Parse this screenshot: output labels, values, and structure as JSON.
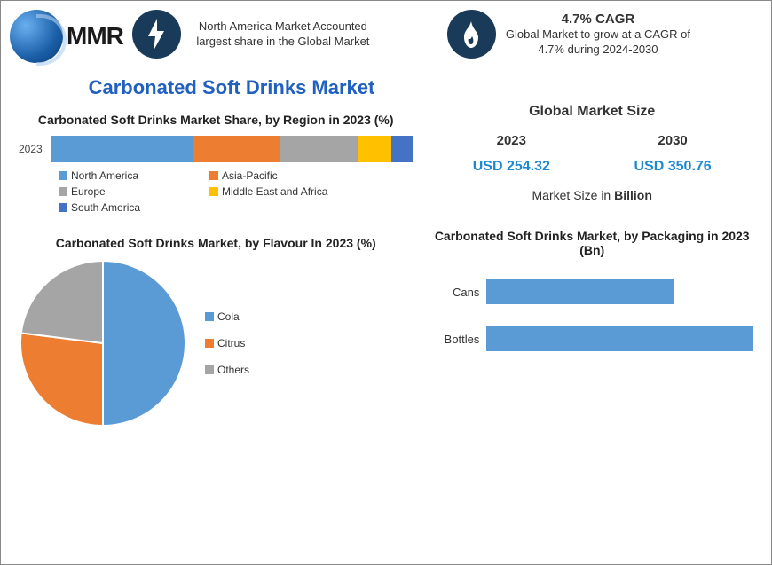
{
  "logo": {
    "text": "MMR"
  },
  "header": {
    "stat1": {
      "icon": "bolt",
      "text": "North America Market Accounted largest share in the Global Market"
    },
    "stat2": {
      "icon": "flame",
      "highlight": "4.7% CAGR",
      "text": "Global Market to grow at a CAGR of 4.7% during 2024-2030"
    }
  },
  "main_title": "Carbonated Soft Drinks Market",
  "region_chart": {
    "title": "Carbonated Soft Drinks Market Share, by Region in 2023 (%)",
    "year_label": "2023",
    "segments": [
      {
        "label": "North America",
        "value": 39,
        "color": "#5b9bd5"
      },
      {
        "label": "Asia-Pacific",
        "value": 24,
        "color": "#ed7d31"
      },
      {
        "label": "Europe",
        "value": 22,
        "color": "#a5a5a5"
      },
      {
        "label": "Middle East and Africa",
        "value": 9,
        "color": "#ffc000"
      },
      {
        "label": "South America",
        "value": 6,
        "color": "#4472c4"
      }
    ]
  },
  "global_market_size": {
    "title": "Global Market Size",
    "items": [
      {
        "year": "2023",
        "value": "USD 254.32",
        "color": "#1e88d0"
      },
      {
        "year": "2030",
        "value": "USD 350.76",
        "color": "#1e88d0"
      }
    ],
    "note_prefix": "Market Size in ",
    "note_bold": "Billion"
  },
  "flavour_chart": {
    "title": "Carbonated Soft Drinks Market, by Flavour In 2023 (%)",
    "slices": [
      {
        "label": "Cola",
        "value": 50,
        "color": "#5b9bd5"
      },
      {
        "label": "Citrus",
        "value": 27,
        "color": "#ed7d31"
      },
      {
        "label": "Others",
        "value": 23,
        "color": "#a5a5a5"
      }
    ],
    "pie_size": 190
  },
  "packaging_chart": {
    "title": "Carbonated Soft Drinks Market, by Packaging in 2023 (Bn)",
    "bars": [
      {
        "label": "Cans",
        "value": 70,
        "color": "#5b9bd5"
      },
      {
        "label": "Bottles",
        "value": 100,
        "color": "#5b9bd5"
      }
    ],
    "max": 100
  }
}
